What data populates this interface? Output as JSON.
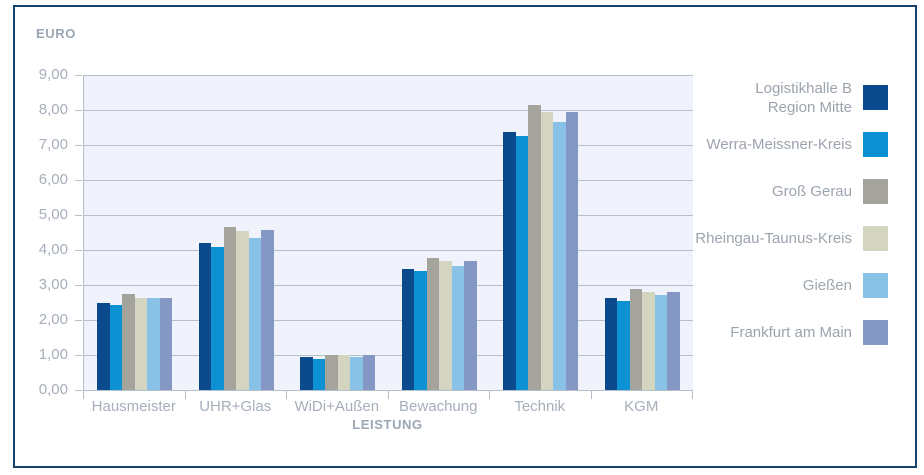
{
  "frame": {
    "border_color": "#16426F"
  },
  "chart_data": {
    "type": "bar",
    "title": "",
    "ylabel": "EURO",
    "xlabel": "LEISTUNG",
    "ymin": 0,
    "ymax": 9,
    "ystep": 1,
    "yticks": [
      "9,00",
      "8,00",
      "7,00",
      "6,00",
      "5,00",
      "4,00",
      "3,00",
      "2,00",
      "1,00",
      "0,00"
    ],
    "categories": [
      "Hausmeister",
      "UHR+Glas",
      "WiDi+Außen",
      "Bewachung",
      "Technik",
      "KGM"
    ],
    "series": [
      {
        "name": "Logistikhalle B\nRegion Mitte",
        "color": "#0B4A8C",
        "values": [
          2.48,
          4.2,
          0.93,
          3.45,
          7.37,
          2.63
        ]
      },
      {
        "name": "Werra-Meissner-Kreis",
        "color": "#0C92D3",
        "values": [
          2.44,
          4.08,
          0.88,
          3.4,
          7.27,
          2.55
        ]
      },
      {
        "name": "Groß Gerau",
        "color": "#A4A49C",
        "values": [
          2.73,
          4.66,
          1.01,
          3.78,
          8.15,
          2.89
        ]
      },
      {
        "name": "Rheingau-Taunus-Kreis",
        "color": "#D4D5C1",
        "values": [
          2.62,
          4.55,
          0.99,
          3.69,
          7.94,
          2.8
        ]
      },
      {
        "name": "Gießen",
        "color": "#8AC1E7",
        "values": [
          2.62,
          4.35,
          0.95,
          3.55,
          7.66,
          2.71
        ]
      },
      {
        "name": "Frankfurt am Main",
        "color": "#8597C5",
        "values": [
          2.63,
          4.56,
          0.99,
          3.69,
          7.94,
          2.79
        ]
      }
    ],
    "grid": "horizontal",
    "legend_position": "right",
    "plot_bg": "#F0F3FB",
    "grid_color": "#B4BFCA",
    "axis_text_color": "#A5AEBA",
    "axis_title_color": "#9BA6B4",
    "legend_text_color": "#9CA4AE"
  }
}
